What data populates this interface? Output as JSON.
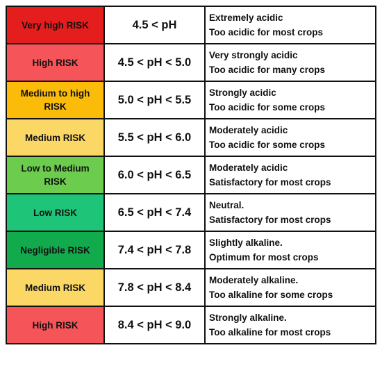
{
  "rows": [
    {
      "risk": "Very high RISK",
      "ph": "4.5 < pH",
      "line1": "Extremely acidic",
      "line2": "Too acidic for most crops",
      "color": "#e41d1d"
    },
    {
      "risk": "High RISK",
      "ph": "4.5 < pH < 5.0",
      "line1": "Very strongly acidic",
      "line2": "Too acidic for many crops",
      "color": "#f55459"
    },
    {
      "risk": "Medium to high RISK",
      "ph": "5.0 < pH < 5.5",
      "line1": "Strongly acidic",
      "line2": "Too acidic for some crops",
      "color": "#fbbb09"
    },
    {
      "risk": "Medium RISK",
      "ph": "5.5 < pH < 6.0",
      "line1": "Moderately acidic",
      "line2": "Too acidic for some crops",
      "color": "#fbd866"
    },
    {
      "risk": "Low to Medium RISK",
      "ph": "6.0 < pH < 6.5",
      "line1": "Moderately acidic",
      "line2": "Satisfactory for most crops",
      "color": "#6ccc4d"
    },
    {
      "risk": "Low RISK",
      "ph": "6.5 < pH < 7.4",
      "line1": "Neutral.",
      "line2": "Satisfactory for most crops",
      "color": "#1ec478"
    },
    {
      "risk": "Negligible RISK",
      "ph": "7.4 < pH < 7.8",
      "line1": "Slightly alkaline.",
      "line2": "Optimum for most crops",
      "color": "#11ab4d"
    },
    {
      "risk": "Medium RISK",
      "ph": "7.8 < pH < 8.4",
      "line1": "Moderately alkaline.",
      "line2": "Too alkaline for some crops",
      "color": "#fbd866"
    },
    {
      "risk": "High RISK",
      "ph": "8.4 < pH < 9.0",
      "line1": "Strongly alkaline.",
      "line2": "Too alkaline for most crops",
      "color": "#f55459"
    }
  ]
}
